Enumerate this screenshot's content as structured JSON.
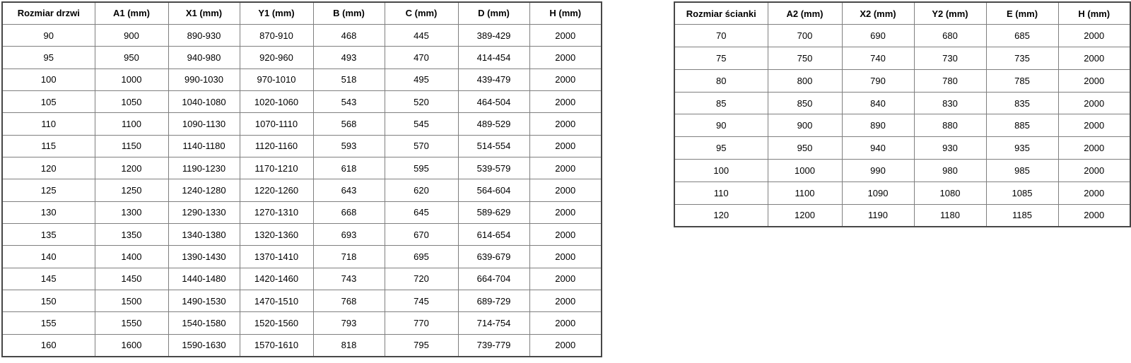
{
  "door_table": {
    "name": "door-dimensions-table",
    "headers": [
      "Rozmiar drzwi",
      "A1 (mm)",
      "X1 (mm)",
      "Y1 (mm)",
      "B (mm)",
      "C (mm)",
      "D (mm)",
      "H (mm)"
    ],
    "rows": [
      [
        "90",
        "900",
        "890-930",
        "870-910",
        "468",
        "445",
        "389-429",
        "2000"
      ],
      [
        "95",
        "950",
        "940-980",
        "920-960",
        "493",
        "470",
        "414-454",
        "2000"
      ],
      [
        "100",
        "1000",
        "990-1030",
        "970-1010",
        "518",
        "495",
        "439-479",
        "2000"
      ],
      [
        "105",
        "1050",
        "1040-1080",
        "1020-1060",
        "543",
        "520",
        "464-504",
        "2000"
      ],
      [
        "110",
        "1100",
        "1090-1130",
        "1070-1110",
        "568",
        "545",
        "489-529",
        "2000"
      ],
      [
        "115",
        "1150",
        "1140-1180",
        "1120-1160",
        "593",
        "570",
        "514-554",
        "2000"
      ],
      [
        "120",
        "1200",
        "1190-1230",
        "1170-1210",
        "618",
        "595",
        "539-579",
        "2000"
      ],
      [
        "125",
        "1250",
        "1240-1280",
        "1220-1260",
        "643",
        "620",
        "564-604",
        "2000"
      ],
      [
        "130",
        "1300",
        "1290-1330",
        "1270-1310",
        "668",
        "645",
        "589-629",
        "2000"
      ],
      [
        "135",
        "1350",
        "1340-1380",
        "1320-1360",
        "693",
        "670",
        "614-654",
        "2000"
      ],
      [
        "140",
        "1400",
        "1390-1430",
        "1370-1410",
        "718",
        "695",
        "639-679",
        "2000"
      ],
      [
        "145",
        "1450",
        "1440-1480",
        "1420-1460",
        "743",
        "720",
        "664-704",
        "2000"
      ],
      [
        "150",
        "1500",
        "1490-1530",
        "1470-1510",
        "768",
        "745",
        "689-729",
        "2000"
      ],
      [
        "155",
        "1550",
        "1540-1580",
        "1520-1560",
        "793",
        "770",
        "714-754",
        "2000"
      ],
      [
        "160",
        "1600",
        "1590-1630",
        "1570-1610",
        "818",
        "795",
        "739-779",
        "2000"
      ]
    ]
  },
  "wall_table": {
    "name": "wall-dimensions-table",
    "headers": [
      "Rozmiar ścianki",
      "A2 (mm)",
      "X2 (mm)",
      "Y2 (mm)",
      "E (mm)",
      "H (mm)"
    ],
    "rows": [
      [
        "70",
        "700",
        "690",
        "680",
        "685",
        "2000"
      ],
      [
        "75",
        "750",
        "740",
        "730",
        "735",
        "2000"
      ],
      [
        "80",
        "800",
        "790",
        "780",
        "785",
        "2000"
      ],
      [
        "85",
        "850",
        "840",
        "830",
        "835",
        "2000"
      ],
      [
        "90",
        "900",
        "890",
        "880",
        "885",
        "2000"
      ],
      [
        "95",
        "950",
        "940",
        "930",
        "935",
        "2000"
      ],
      [
        "100",
        "1000",
        "990",
        "980",
        "985",
        "2000"
      ],
      [
        "110",
        "1100",
        "1090",
        "1080",
        "1085",
        "2000"
      ],
      [
        "120",
        "1200",
        "1190",
        "1180",
        "1185",
        "2000"
      ]
    ]
  },
  "colors": {
    "outer_border": "#474747",
    "inner_border": "#7f7f7f",
    "text": "#000000",
    "background": "#ffffff"
  }
}
